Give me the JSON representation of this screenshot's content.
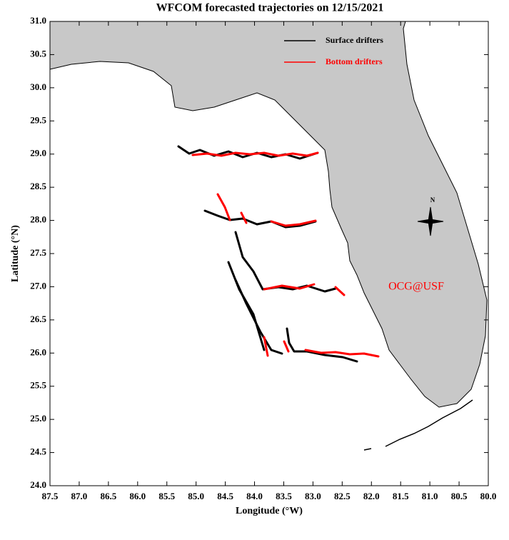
{
  "map": {
    "title": "WFCOM forecasted trajectories on 12/15/2021",
    "xlabel": "Longitude (°W)",
    "ylabel": "Latitude (°N)",
    "xlim": [
      87.5,
      80
    ],
    "ylim": [
      24,
      31
    ],
    "xticks": [
      87.5,
      {
        "value": 87,
        "label": "87.0"
      },
      86.5,
      {
        "value": 86,
        "label": "86.0"
      },
      85.5,
      {
        "value": 85,
        "label": "85.0"
      },
      84.5,
      {
        "value": 84,
        "label": "84.0"
      },
      83.5,
      {
        "value": 83,
        "label": "83.0"
      },
      82.5,
      {
        "value": 82,
        "label": "82.0"
      },
      81.5,
      {
        "value": 81,
        "label": "81.0"
      },
      80.5,
      {
        "value": 80,
        "label": "80.0"
      }
    ],
    "yticks": [
      {
        "value": 24,
        "label": "24.0"
      },
      24.5,
      {
        "value": 25,
        "label": "25.0"
      },
      25.5,
      {
        "value": 26,
        "label": "26.0"
      },
      26.5,
      {
        "value": 27,
        "label": "27.0"
      },
      27.5,
      {
        "value": 28,
        "label": "28.0"
      },
      28.5,
      {
        "value": 29,
        "label": "29.0"
      },
      29.5,
      {
        "value": 30,
        "label": "30.0"
      },
      30.5,
      {
        "value": 31,
        "label": "31.0"
      }
    ],
    "legend": [
      {
        "name": "Surface drifters",
        "color": "#000000"
      },
      {
        "name": "Bottom drifters",
        "color": "#ff0000"
      }
    ],
    "annotation": "OCG@USF",
    "annotation_color": "#ff0000",
    "compass": "N"
  }
}
